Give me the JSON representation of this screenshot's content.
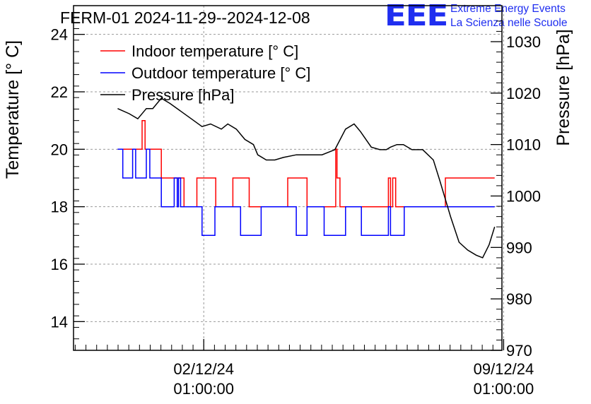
{
  "logo": {
    "letters": "EEE",
    "line1": "Extreme Energy Events",
    "line2": "La Scienza nelle Scuole"
  },
  "chart_data": {
    "type": "line",
    "title": "FERM-01 2024-11-29--2024-12-08",
    "ylabel_left": "Temperature [° C]",
    "ylabel_right": "Pressure [hPa]",
    "ylim_left": [
      13,
      25
    ],
    "ylim_right": [
      970,
      1037
    ],
    "yticks_left": [
      14,
      16,
      18,
      20,
      22,
      24
    ],
    "yticks_right": [
      970,
      980,
      990,
      1000,
      1010,
      1020,
      1030
    ],
    "xlim_days": [
      0,
      10
    ],
    "x_unit": "days since 2024-11-29 00:00",
    "xticks": [
      {
        "day": 3.04,
        "date": "02/12/24",
        "time": "01:00:00"
      },
      {
        "day": 10.04,
        "date": "09/12/24",
        "time": "01:00:00"
      }
    ],
    "grid": true,
    "legend_position": "top-left",
    "series": [
      {
        "name": "Indoor temperature [° C]",
        "color": "#ff0000",
        "axis": "left",
        "step": true,
        "x": [
          1.03,
          1.6,
          1.6,
          1.67,
          1.67,
          1.73,
          1.73,
          2.05,
          2.05,
          2.58,
          2.58,
          2.88,
          2.88,
          3.32,
          3.32,
          3.72,
          3.72,
          4.1,
          4.1,
          5.0,
          5.0,
          5.45,
          5.45,
          6.12,
          6.12,
          6.15,
          6.15,
          6.22,
          6.22,
          7.35,
          7.35,
          7.4,
          7.4,
          7.45,
          7.45,
          7.52,
          7.52,
          8.68,
          8.68,
          9.83
        ],
        "values": [
          20,
          20,
          21,
          21,
          20,
          20,
          20,
          20,
          19,
          19,
          18,
          18,
          19,
          19,
          18,
          18,
          19,
          19,
          18,
          18,
          19,
          19,
          18,
          18,
          20,
          20,
          19,
          19,
          18,
          18,
          19,
          19,
          18,
          18,
          19,
          19,
          18,
          18,
          19,
          19
        ]
      },
      {
        "name": "Outdoor temperature [° C]",
        "color": "#0000ff",
        "axis": "left",
        "step": true,
        "x": [
          1.03,
          1.15,
          1.15,
          1.38,
          1.38,
          1.45,
          1.45,
          1.7,
          1.7,
          1.78,
          1.78,
          2.05,
          2.05,
          2.35,
          2.35,
          2.42,
          2.42,
          2.45,
          2.45,
          2.5,
          2.5,
          2.53,
          2.53,
          3.0,
          3.0,
          3.3,
          3.3,
          3.9,
          3.9,
          4.38,
          4.38,
          5.2,
          5.2,
          5.45,
          5.45,
          5.85,
          5.85,
          6.35,
          6.35,
          6.72,
          6.72,
          7.35,
          7.35,
          7.4,
          7.4,
          7.72,
          7.72,
          8.15,
          8.15,
          9.83
        ],
        "values": [
          20,
          20,
          19,
          19,
          20,
          20,
          19,
          19,
          20,
          20,
          19,
          19,
          18,
          18,
          19,
          19,
          18,
          18,
          19,
          19,
          18,
          18,
          18,
          18,
          17,
          17,
          18,
          18,
          17,
          17,
          18,
          18,
          17,
          17,
          18,
          18,
          17,
          17,
          18,
          18,
          17,
          17,
          18,
          18,
          17,
          17,
          18,
          18,
          18,
          18
        ]
      },
      {
        "name": "Pressure [hPa]",
        "color": "#000000",
        "axis": "right",
        "step": false,
        "x": [
          1.03,
          1.3,
          1.5,
          1.7,
          1.85,
          2.05,
          2.25,
          2.5,
          2.75,
          3.0,
          3.2,
          3.45,
          3.6,
          3.8,
          4.0,
          4.2,
          4.3,
          4.5,
          4.7,
          4.9,
          5.2,
          5.5,
          5.8,
          6.1,
          6.35,
          6.55,
          6.7,
          6.95,
          7.15,
          7.3,
          7.4,
          7.55,
          7.7,
          7.9,
          8.15,
          8.4,
          8.55,
          8.8,
          9.0,
          9.2,
          9.4,
          9.55,
          9.7,
          9.83
        ],
        "values": [
          1017,
          1016,
          1015,
          1017,
          1017,
          1019,
          1018,
          1016.5,
          1015,
          1013.5,
          1014,
          1013,
          1014,
          1013,
          1011,
          1010,
          1008,
          1007,
          1007,
          1007.5,
          1008,
          1008,
          1008,
          1009,
          1013,
          1014,
          1012.5,
          1009.5,
          1009,
          1009,
          1009.5,
          1010,
          1010,
          1009,
          1009,
          1007,
          1003,
          996,
          991,
          989.5,
          988.5,
          988,
          990.5,
          994
        ]
      }
    ]
  }
}
